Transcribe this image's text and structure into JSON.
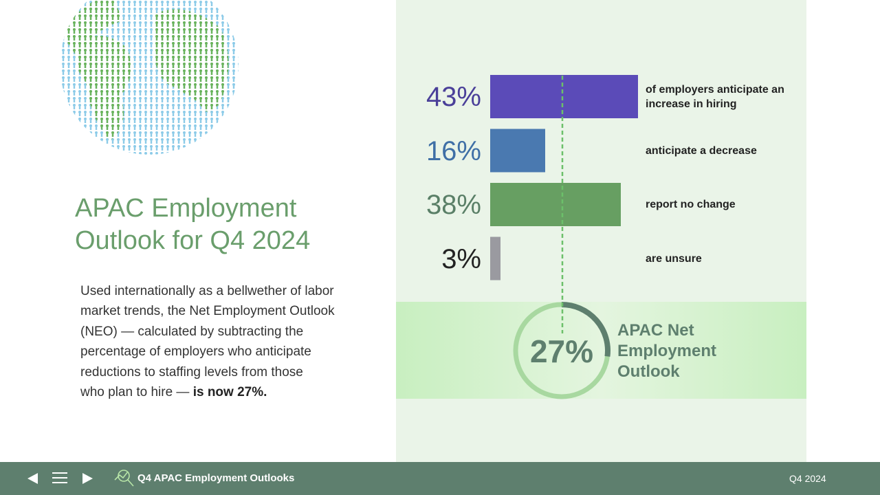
{
  "title": "APAC Employment Outlook for Q4 2024",
  "body": {
    "lines": [
      "Used internationally as a bellwether of labor",
      "market trends, the Net Employment Outlook",
      "(NEO) — calculated by subtracting the",
      "percentage of employers who anticipate",
      "reductions to staffing levels from those",
      "who plan to hire — "
    ],
    "emphasis": "is now 27%."
  },
  "chart_data": {
    "type": "bar",
    "orientation": "horizontal",
    "categories": [
      "of employers anticipate an increase in hiring",
      "anticipate a decrease",
      "report no change",
      "are unsure"
    ],
    "values": [
      43,
      16,
      38,
      3
    ],
    "value_labels": [
      "43%",
      "16%",
      "38%",
      "3%"
    ],
    "colors": [
      "#5b4bb8",
      "#4a79b0",
      "#679f62",
      "#9a9aa0"
    ],
    "label_colors": [
      "#4a3f99",
      "#3f6fa6",
      "#5a7f67",
      "#222222"
    ]
  },
  "net_outlook": {
    "label": "APAC Net Employment Outlook",
    "value": 27,
    "value_label": "27%",
    "color": "#5e7f6e",
    "track_color": "#a8d8a0"
  },
  "footer": {
    "title": "Q4 APAC Employment Outlooks",
    "period": "Q4 2024"
  }
}
